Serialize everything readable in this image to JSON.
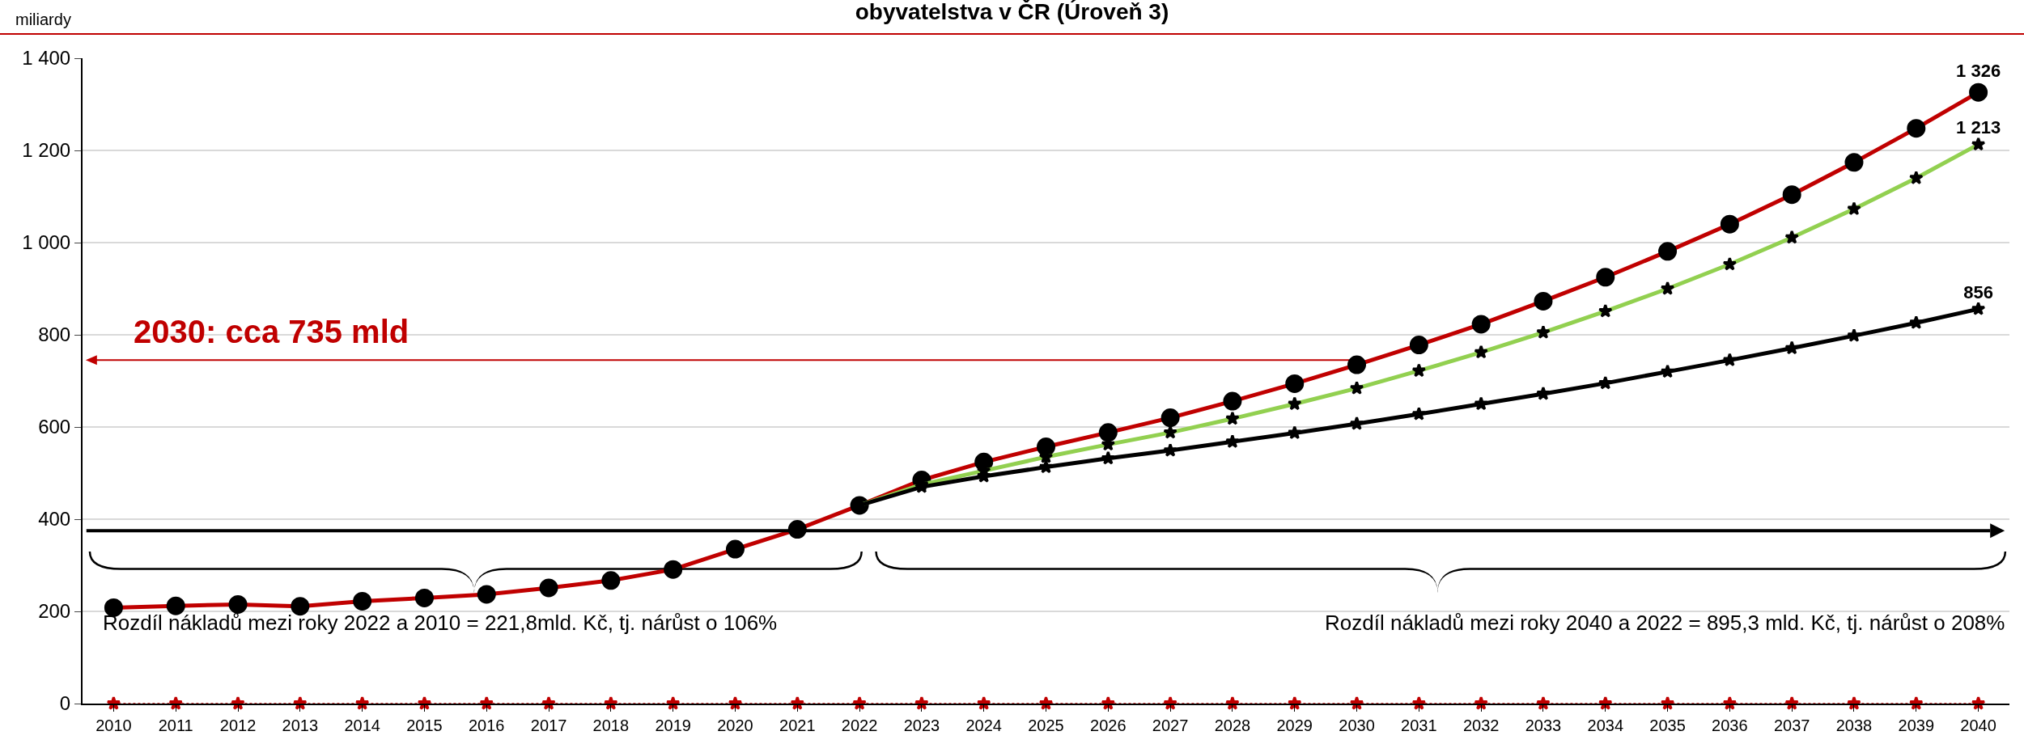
{
  "chart_data": {
    "type": "line",
    "title": "obyvatelstva v ČR (Úroveň 3)",
    "ylabel": "miliardy",
    "categories": [
      "2010",
      "2011",
      "2012",
      "2013",
      "2014",
      "2015",
      "2016",
      "2017",
      "2018",
      "2019",
      "2020",
      "2021",
      "2022",
      "2023",
      "2024",
      "2025",
      "2026",
      "2027",
      "2028",
      "2029",
      "2030",
      "2031",
      "2032",
      "2033",
      "2034",
      "2035",
      "2036",
      "2037",
      "2038",
      "2039",
      "2040"
    ],
    "series": [
      {
        "color": "#c00000",
        "marker": "circle",
        "values": [
          208,
          212,
          215,
          211,
          222,
          229,
          237,
          251,
          267,
          291,
          335,
          378,
          430,
          485,
          524,
          557,
          588,
          620,
          656,
          694,
          735,
          778,
          823,
          873,
          925,
          981,
          1040,
          1104,
          1174,
          1248,
          1326
        ],
        "value_labels": [
          null,
          null,
          null,
          null,
          null,
          null,
          null,
          null,
          null,
          null,
          null,
          null,
          null,
          null,
          null,
          null,
          null,
          null,
          null,
          null,
          null,
          null,
          null,
          null,
          null,
          null,
          null,
          null,
          null,
          null,
          "1 326"
        ]
      },
      {
        "color": "#92d050",
        "marker": "star",
        "values": [
          null,
          null,
          null,
          null,
          null,
          null,
          null,
          null,
          null,
          null,
          null,
          null,
          430,
          475,
          505,
          535,
          562,
          588,
          618,
          650,
          684,
          722,
          762,
          805,
          851,
          900,
          953,
          1011,
          1073,
          1140,
          1213
        ],
        "value_labels": [
          null,
          null,
          null,
          null,
          null,
          null,
          null,
          null,
          null,
          null,
          null,
          null,
          null,
          null,
          null,
          null,
          null,
          null,
          null,
          null,
          null,
          null,
          null,
          null,
          null,
          null,
          null,
          null,
          null,
          null,
          "1 213"
        ]
      },
      {
        "color": "#000000",
        "marker": "star",
        "values": [
          null,
          null,
          null,
          null,
          null,
          null,
          null,
          null,
          null,
          null,
          null,
          null,
          430,
          470,
          493,
          513,
          532,
          549,
          568,
          587,
          607,
          628,
          650,
          672,
          695,
          720,
          745,
          771,
          798,
          826,
          856
        ],
        "value_labels": [
          null,
          null,
          null,
          null,
          null,
          null,
          null,
          null,
          null,
          null,
          null,
          null,
          null,
          null,
          null,
          null,
          null,
          null,
          null,
          null,
          null,
          null,
          null,
          null,
          null,
          null,
          null,
          null,
          null,
          null,
          "856"
        ]
      },
      {
        "color": "#c00000",
        "marker": "star",
        "line_style": "dotted",
        "values": [
          0,
          0,
          0,
          0,
          0,
          0,
          0,
          0,
          0,
          0,
          0,
          0,
          0,
          0,
          0,
          0,
          0,
          0,
          0,
          0,
          0,
          0,
          0,
          0,
          0,
          0,
          0,
          0,
          0,
          0,
          0
        ]
      }
    ],
    "ylim": [
      0,
      1400
    ],
    "yticks": [
      0,
      200,
      400,
      600,
      800,
      {
        "value": 1000,
        "label": "1 000"
      },
      {
        "value": 1200,
        "label": "1 200"
      },
      {
        "value": 1400,
        "label": "1 400"
      }
    ],
    "grid": "y",
    "ref_lines": [
      {
        "axis": "y",
        "value": 375,
        "color": "#000000"
      }
    ],
    "annotations": [
      "2030: cca 735 mld",
      "Rozdíl nákladů mezi roky 2022 a 2010 = 221,8mld. Kč, tj. nárůst o 106%",
      "Rozdíl nákladů mezi roky 2040 a 2022 = 895,3 mld. Kč, tj. nárůst o 208%"
    ]
  }
}
